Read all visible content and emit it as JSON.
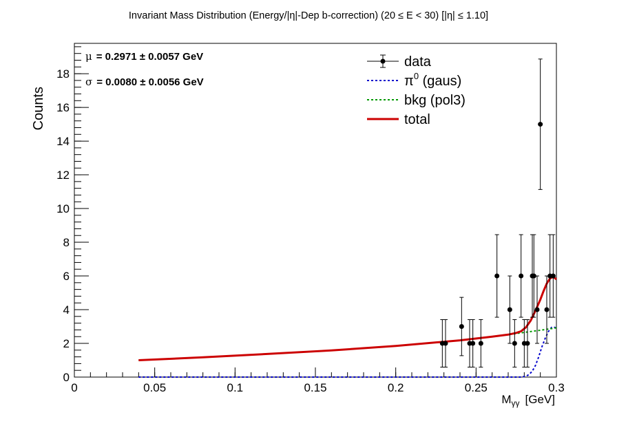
{
  "chart_data": {
    "type": "scatter",
    "title": "Invariant Mass Distribution (Energy/|η|-Dep b-correction)   (20 ≤ E < 30)   [|η| ≤ 1.10]",
    "xlabel": "M",
    "xlabel_sub": "γγ",
    "xlabel_unit": "[GeV]",
    "ylabel": "Counts",
    "xlim": [
      0,
      0.3
    ],
    "ylim": [
      0,
      19.8
    ],
    "x_major_ticks": [
      0,
      0.05,
      0.1,
      0.15,
      0.2,
      0.25,
      0.3
    ],
    "x_tick_labels": [
      "0",
      "0.05",
      "0.1",
      "0.15",
      "0.2",
      "0.25",
      "0.3"
    ],
    "y_major_ticks": [
      0,
      2,
      4,
      6,
      8,
      10,
      12,
      14,
      16,
      18
    ],
    "y_tick_labels": [
      "0",
      "2",
      "4",
      "6",
      "8",
      "10",
      "12",
      "14",
      "16",
      "18"
    ],
    "grid": false,
    "fit_text": {
      "mu_symbol": "μ",
      "mu_text": "= 0.2971 ± 0.0057 GeV",
      "sigma_symbol": "σ",
      "sigma_text": "= 0.0080  ± 0.0056 GeV"
    },
    "legend": {
      "placement": "top-right",
      "entries": [
        {
          "label": "data",
          "kind": "marker",
          "color": "#000000"
        },
        {
          "label": "π",
          "sup": "0",
          "suffix": " (gaus)",
          "kind": "dashed",
          "color": "#0000cc"
        },
        {
          "label": "bkg (pol3)",
          "kind": "dashed",
          "color": "#009900"
        },
        {
          "label": "total",
          "kind": "solid",
          "color": "#cc0000"
        }
      ]
    },
    "series": [
      {
        "name": "data",
        "kind": "points",
        "color": "#000000",
        "x": [
          0.229,
          0.231,
          0.241,
          0.246,
          0.248,
          0.253,
          0.263,
          0.271,
          0.274,
          0.278,
          0.28,
          0.282,
          0.285,
          0.286,
          0.288,
          0.29,
          0.294,
          0.296,
          0.298
        ],
        "y": [
          2,
          2,
          3,
          2,
          2,
          2,
          6,
          4,
          2,
          6,
          2,
          2,
          6,
          6,
          4,
          15,
          4,
          6,
          6
        ],
        "err": [
          1.41,
          1.41,
          1.73,
          1.41,
          1.41,
          1.41,
          2.45,
          2.0,
          1.41,
          2.45,
          1.41,
          1.41,
          2.45,
          2.45,
          2.0,
          3.87,
          2.0,
          2.45,
          2.45
        ]
      },
      {
        "name": "π⁰ (gaus)",
        "kind": "dashed",
        "color": "#0000cc",
        "x": [
          0.04,
          0.27,
          0.278,
          0.281,
          0.283,
          0.285,
          0.287,
          0.289,
          0.291,
          0.293,
          0.295,
          0.297,
          0.299,
          0.3
        ],
        "y": [
          0,
          0,
          0.0,
          0.05,
          0.15,
          0.35,
          0.7,
          1.2,
          1.8,
          2.3,
          2.7,
          2.95,
          2.95,
          2.9
        ]
      },
      {
        "name": "bkg (pol3)",
        "kind": "dashed",
        "color": "#009900",
        "x": [
          0.04,
          0.08,
          0.12,
          0.16,
          0.2,
          0.24,
          0.26,
          0.27,
          0.28,
          0.29,
          0.3
        ],
        "y": [
          1.0,
          1.17,
          1.37,
          1.58,
          1.85,
          2.18,
          2.4,
          2.52,
          2.65,
          2.78,
          2.92
        ]
      },
      {
        "name": "total",
        "kind": "solid",
        "color": "#cc0000",
        "x": [
          0.04,
          0.08,
          0.12,
          0.16,
          0.2,
          0.24,
          0.26,
          0.27,
          0.275,
          0.278,
          0.281,
          0.284,
          0.287,
          0.29,
          0.292,
          0.294,
          0.296,
          0.298,
          0.3
        ],
        "y": [
          1.0,
          1.17,
          1.37,
          1.58,
          1.85,
          2.18,
          2.4,
          2.52,
          2.62,
          2.72,
          2.95,
          3.35,
          3.95,
          4.6,
          5.1,
          5.55,
          5.85,
          5.95,
          5.8
        ]
      }
    ]
  }
}
